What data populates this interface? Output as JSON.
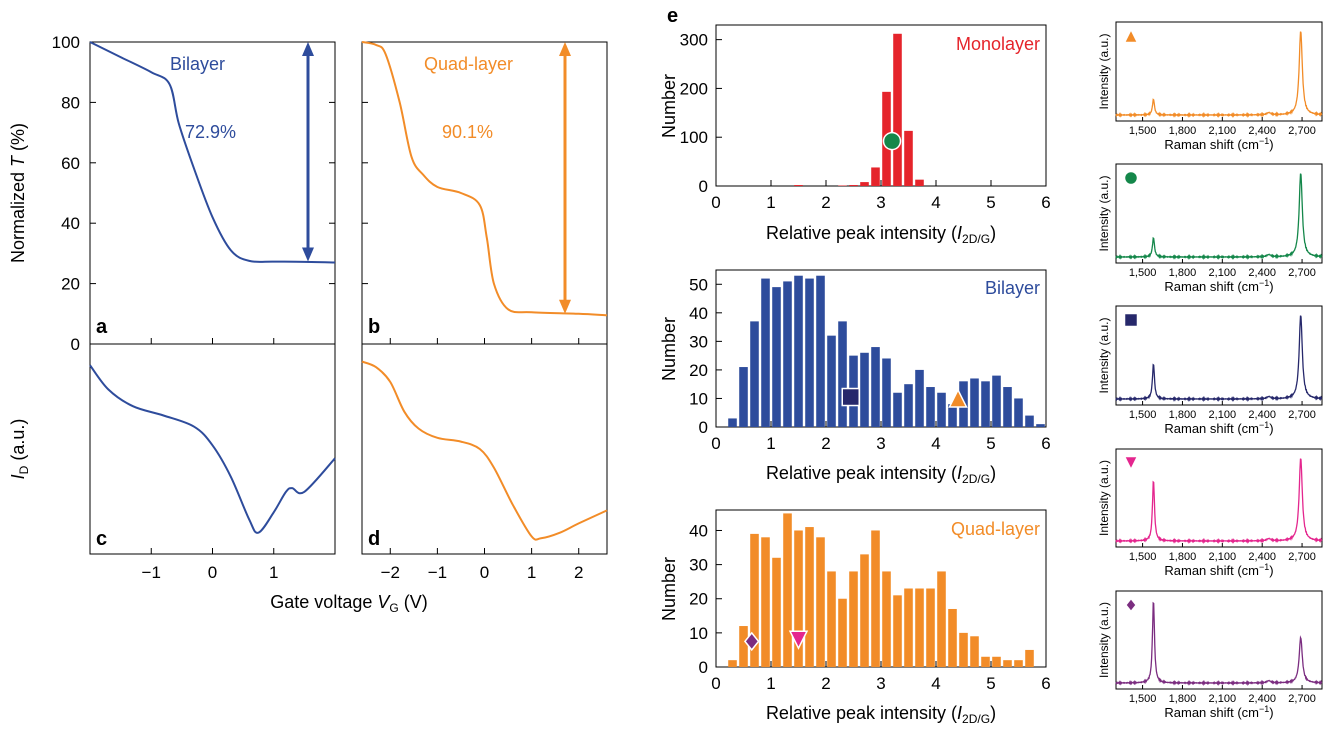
{
  "colors": {
    "bilayer": "#2E4C9C",
    "quad": "#F28C28",
    "mono": "#E5242B",
    "green": "#14874A",
    "navy": "#26286B",
    "pink": "#E4268E",
    "purple": "#7B2D80"
  },
  "left": {
    "ylabel_T_pre": "Normalized ",
    "ylabel_T_it": "T",
    "ylabel_T_post": " (%)",
    "ylabel_I_main": "I",
    "ylabel_I_sub": "D",
    "ylabel_I_post": " (a.u.)",
    "xlabel_pre": "Gate voltage ",
    "xlabel_it": "V",
    "xlabel_sub": "G",
    "xlabel_post": " (V)",
    "yticks_T": [
      "100",
      "80",
      "60",
      "40",
      "20",
      "0"
    ],
    "xticks_a": [
      "−1",
      "0",
      "1"
    ],
    "xticks_b": [
      "−2",
      "−1",
      "0",
      "1",
      "2"
    ]
  },
  "chart_data": [
    {
      "panel": "a",
      "type": "line",
      "label": "Bilayer",
      "annotation": "72.9%",
      "xlim": [
        -2,
        2
      ],
      "ylim": [
        0,
        100
      ],
      "x": [
        -2,
        -1.5,
        -1.0,
        -0.7,
        -0.55,
        -0.3,
        0,
        0.3,
        0.6,
        1.0,
        1.5,
        2.0
      ],
      "y": [
        100,
        95,
        90,
        86,
        73,
        58,
        42,
        31,
        27.5,
        27.3,
        27.2,
        27
      ]
    },
    {
      "panel": "b",
      "type": "line",
      "label": "Quad-layer",
      "annotation": "90.1%",
      "xlim": [
        -2.6,
        2.6
      ],
      "ylim": [
        0,
        100
      ],
      "x": [
        -2.6,
        -2.3,
        -2.1,
        -1.8,
        -1.55,
        -1.3,
        -1.0,
        -0.5,
        -0.1,
        0.05,
        0.2,
        0.5,
        1.0,
        2.0,
        2.6
      ],
      "y": [
        100,
        99,
        96,
        80,
        62,
        56,
        52,
        50,
        46,
        35,
        20,
        11.5,
        10.5,
        10,
        9.5
      ]
    },
    {
      "panel": "c",
      "type": "line",
      "ylabel": "I_D (a.u.)",
      "xlim": [
        -2,
        2
      ],
      "y_units": "a.u.",
      "x": [
        -2,
        -1.7,
        -1.3,
        -0.8,
        -0.3,
        0.0,
        0.3,
        0.6,
        0.75,
        1.0,
        1.2,
        1.3,
        1.5,
        2.0
      ],
      "y": [
        0.95,
        0.82,
        0.73,
        0.68,
        0.62,
        0.52,
        0.35,
        0.12,
        0.05,
        0.16,
        0.27,
        0.29,
        0.27,
        0.45
      ]
    },
    {
      "panel": "d",
      "type": "line",
      "xlim": [
        -2.6,
        2.6
      ],
      "y_units": "a.u.",
      "x": [
        -2.6,
        -2.3,
        -2.0,
        -1.7,
        -1.4,
        -1.0,
        -0.5,
        -0.1,
        0.2,
        0.6,
        1.0,
        1.2,
        1.6,
        2.0,
        2.6
      ],
      "y": [
        0.97,
        0.94,
        0.86,
        0.7,
        0.61,
        0.56,
        0.54,
        0.5,
        0.4,
        0.2,
        0.03,
        0.02,
        0.05,
        0.1,
        0.17
      ]
    },
    {
      "panel": "e-monolayer",
      "type": "bar",
      "label": "Monolayer",
      "xlabel": "Relative peak intensity (I2D/G)",
      "ylabel": "Number",
      "xlim": [
        0,
        6
      ],
      "ylim": [
        0,
        330
      ],
      "yticks": [
        0,
        100,
        200,
        300
      ],
      "bin_width": 0.2,
      "bin_starts": [
        1.4,
        2.2,
        2.4,
        2.6,
        2.8,
        3.0,
        3.2,
        3.4,
        3.6
      ],
      "values": [
        2,
        1,
        2,
        8,
        38,
        193,
        312,
        113,
        13
      ],
      "marker": {
        "shape": "circle",
        "x": 3.2,
        "y": 92
      }
    },
    {
      "panel": "e-bilayer",
      "type": "bar",
      "label": "Bilayer",
      "xlabel": "Relative peak intensity (I2D/G)",
      "ylabel": "Number",
      "xlim": [
        0,
        6
      ],
      "ylim": [
        0,
        55
      ],
      "yticks": [
        0,
        10,
        20,
        30,
        40,
        50
      ],
      "bin_width": 0.2,
      "bin_starts": [
        0.2,
        0.4,
        0.6,
        0.8,
        1.0,
        1.2,
        1.4,
        1.6,
        1.8,
        2.0,
        2.2,
        2.4,
        2.6,
        2.8,
        3.0,
        3.2,
        3.4,
        3.6,
        3.8,
        4.0,
        4.2,
        4.4,
        4.6,
        4.8,
        5.0,
        5.2,
        5.4,
        5.6,
        5.8
      ],
      "values": [
        3,
        21,
        37,
        52,
        49,
        51,
        53,
        52,
        53,
        32,
        37,
        25,
        26,
        28,
        24,
        12,
        15,
        20,
        14,
        12,
        8,
        16,
        17,
        16,
        18,
        14,
        10,
        4,
        1
      ],
      "markers": [
        {
          "shape": "square",
          "x": 2.45,
          "y": 10.5
        },
        {
          "shape": "triangle-up",
          "x": 4.4,
          "y": 10
        }
      ]
    },
    {
      "panel": "e-quad",
      "type": "bar",
      "label": "Quad-layer",
      "xlabel": "Relative peak intensity (I2D/G)",
      "ylabel": "Number",
      "xlim": [
        0,
        6
      ],
      "ylim": [
        0,
        46
      ],
      "yticks": [
        0,
        10,
        20,
        30,
        40
      ],
      "bin_width": 0.2,
      "bin_starts": [
        0.2,
        0.4,
        0.6,
        0.8,
        1.0,
        1.2,
        1.4,
        1.6,
        1.8,
        2.0,
        2.2,
        2.4,
        2.6,
        2.8,
        3.0,
        3.2,
        3.4,
        3.6,
        3.8,
        4.0,
        4.2,
        4.4,
        4.6,
        4.8,
        5.0,
        5.2,
        5.4,
        5.6
      ],
      "values": [
        2,
        12,
        39,
        38,
        32,
        45,
        40,
        41,
        38,
        28,
        20,
        28,
        33,
        40,
        28,
        21,
        23,
        23,
        23,
        28,
        17,
        10,
        9,
        3,
        3,
        2,
        2,
        5
      ],
      "markers": [
        {
          "shape": "diamond",
          "x": 0.65,
          "y": 7.5
        },
        {
          "shape": "triangle-down",
          "x": 1.5,
          "y": 8
        }
      ]
    },
    {
      "panel": "raman",
      "type": "line",
      "xlabel": "Raman shift (cm−1)",
      "ylabel": "Intensity (a.u.)",
      "xlim": [
        1300,
        2850
      ],
      "xticks": [
        "1,500",
        "1,800",
        "2,100",
        "2,400",
        "2,700"
      ],
      "spectra": [
        {
          "marker": "triangle-up",
          "G_peak": 0.18,
          "peak_2D": 0.95
        },
        {
          "marker": "circle",
          "G_peak": 0.22,
          "peak_2D": 0.95
        },
        {
          "marker": "square",
          "G_peak": 0.4,
          "peak_2D": 0.95
        },
        {
          "marker": "triangle-down",
          "G_peak": 0.7,
          "peak_2D": 0.95
        },
        {
          "marker": "diamond",
          "G_peak": 0.95,
          "peak_2D": 0.52
        }
      ]
    }
  ],
  "panel_letters": [
    "a",
    "b",
    "c",
    "d",
    "e"
  ],
  "hist": {
    "xticks": [
      "0",
      "1",
      "2",
      "3",
      "4",
      "5",
      "6"
    ],
    "xlabel_pre": "Relative peak intensity (",
    "xlabel_it": "I",
    "xlabel_sub": "2D/G",
    "xlabel_post": ")",
    "ylabel": "Number"
  },
  "raman": {
    "ylabel": "Intensity (a.u.)",
    "xlabel_pre": "Raman shift (cm",
    "xlabel_sup": "−1",
    "xlabel_post": ")"
  }
}
